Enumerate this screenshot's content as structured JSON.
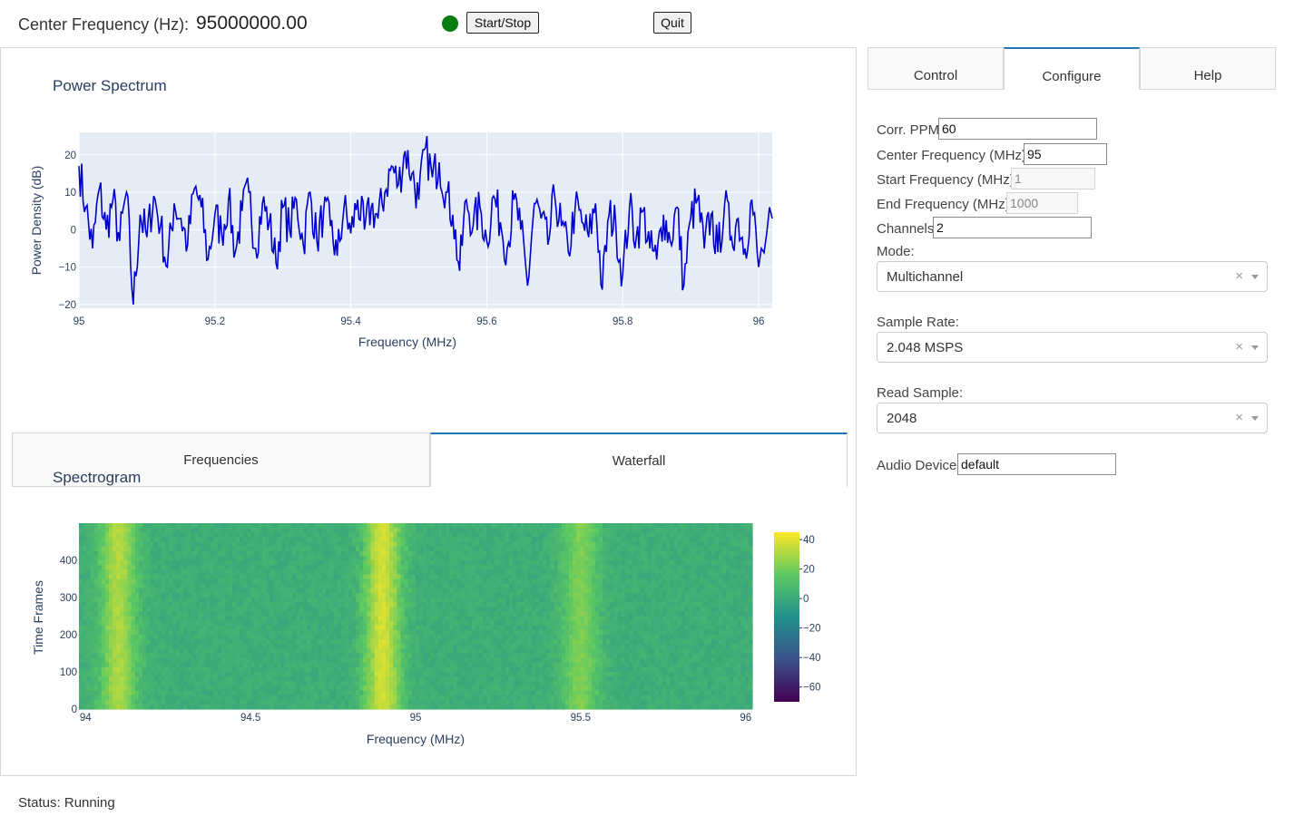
{
  "header": {
    "center_freq_label": "Center Frequency (Hz):",
    "center_freq_value": "95000000.00",
    "running_color": "#0a7d12",
    "start_stop_label": "Start/Stop",
    "quit_label": "Quit"
  },
  "right_tabs": [
    {
      "label": "Control",
      "active": false
    },
    {
      "label": "Configure",
      "active": true
    },
    {
      "label": "Help",
      "active": false
    }
  ],
  "config": {
    "corr_ppm_label": "Corr. PPM:",
    "corr_ppm_value": "60",
    "center_freq_label": "Center Frequency (MHz):",
    "center_freq_value": "95",
    "start_freq_label": "Start Frequency (MHz):",
    "start_freq_value": "1",
    "end_freq_label": "End Frequency (MHz):",
    "end_freq_value": "1000",
    "channels_label": "Channels:",
    "channels_value": "2",
    "mode_label": "Mode:",
    "mode_value": "Multichannel",
    "sample_rate_label": "Sample Rate:",
    "sample_rate_value": "2.048 MSPS",
    "read_sample_label": "Read Sample:",
    "read_sample_value": "2048",
    "audio_device_label": "Audio Device:",
    "audio_device_value": "default",
    "clear_symbol": "×"
  },
  "sub_tabs": [
    {
      "label": "Frequencies",
      "active": false
    },
    {
      "label": "Waterfall",
      "active": true
    }
  ],
  "status_text": "Status: Running",
  "chart_data": [
    {
      "type": "line",
      "title": "Power Spectrum",
      "xlabel": "Frequency (MHz)",
      "ylabel": "Power Density (dB)",
      "xlim": [
        95,
        96.02
      ],
      "ylim": [
        -21,
        26
      ],
      "xticks": [
        95,
        95.2,
        95.4,
        95.6,
        95.8,
        96
      ],
      "xtick_labels": [
        "95",
        "95.2",
        "95.4",
        "95.6",
        "95.8",
        "96"
      ],
      "yticks": [
        -20,
        -10,
        0,
        10,
        20
      ],
      "ytick_labels": [
        "−20",
        "−10",
        "0",
        "10",
        "20"
      ],
      "line_color": "#0000cc",
      "plot_bg": "#e5ecf6",
      "series": [
        {
          "x": [
            95.0,
            95.01,
            95.02,
            95.03,
            95.04,
            95.05,
            95.06,
            95.07,
            95.08,
            95.09,
            95.1,
            95.11,
            95.12,
            95.13,
            95.14,
            95.15,
            95.16,
            95.17,
            95.18,
            95.19,
            95.2,
            95.21,
            95.22,
            95.23,
            95.24,
            95.25,
            95.26,
            95.27,
            95.28,
            95.29,
            95.3,
            95.31,
            95.32,
            95.33,
            95.34,
            95.35,
            95.36,
            95.37,
            95.38,
            95.39,
            95.4,
            95.41,
            95.42,
            95.43,
            95.44,
            95.45,
            95.46,
            95.47,
            95.48,
            95.49,
            95.5,
            95.51,
            95.52,
            95.53,
            95.54,
            95.55,
            95.56,
            95.57,
            95.58,
            95.59,
            95.6,
            95.61,
            95.62,
            95.63,
            95.64,
            95.65,
            95.66,
            95.67,
            95.68,
            95.69,
            95.7,
            95.71,
            95.72,
            95.73,
            95.74,
            95.75,
            95.76,
            95.77,
            95.78,
            95.79,
            95.8,
            95.81,
            95.82,
            95.83,
            95.84,
            95.85,
            95.86,
            95.87,
            95.88,
            95.89,
            95.9,
            95.91,
            95.92,
            95.93,
            95.94,
            95.95,
            95.96,
            95.97,
            95.98,
            95.99,
            96.0,
            96.02
          ],
          "y": [
            17,
            6,
            -5,
            11,
            0,
            8,
            -3,
            10,
            -20,
            4,
            -2,
            9,
            1,
            -10,
            7,
            3,
            -4,
            11,
            6,
            -8,
            4,
            -1,
            8,
            -6,
            5,
            10,
            -5,
            7,
            2,
            -9,
            6,
            0,
            8,
            -4,
            10,
            -3,
            5,
            1,
            -7,
            6,
            -1,
            8,
            0,
            6,
            3,
            10,
            17,
            12,
            21,
            15,
            8,
            22,
            14,
            18,
            10,
            4,
            -11,
            8,
            1,
            6,
            -3,
            9,
            2,
            -5,
            8,
            0,
            -15,
            7,
            3,
            -4,
            9,
            1,
            -6,
            6,
            2,
            -2,
            7,
            -16,
            4,
            1,
            -12,
            6,
            -2,
            5,
            -5,
            -8,
            4,
            -3,
            6,
            -15,
            3,
            8,
            -5,
            4,
            -6,
            7,
            -2,
            3,
            -5,
            8,
            -10,
            3
          ]
        }
      ]
    },
    {
      "type": "heatmap",
      "title": "Spectrogram",
      "xlabel": "Frequency (MHz)",
      "ylabel": "Time Frames",
      "xlim": [
        93.98,
        96.02
      ],
      "ylim": [
        0,
        500
      ],
      "xticks": [
        94,
        94.5,
        95,
        95.5,
        96
      ],
      "xtick_labels": [
        "94",
        "94.5",
        "95",
        "95.5",
        "96"
      ],
      "yticks": [
        0,
        100,
        200,
        300,
        400
      ],
      "ytick_labels": [
        "0",
        "100",
        "200",
        "300",
        "400"
      ],
      "colorscale": "Viridis",
      "zlim": [
        -70,
        45
      ],
      "colorbar_ticks": [
        40,
        20,
        0,
        -20,
        -40,
        -60
      ],
      "colorbar_tick_labels": [
        "40",
        "20",
        "0",
        "−20",
        "−40",
        "−60"
      ],
      "bands": [
        {
          "center_mhz": 94.1,
          "peak_db": 28
        },
        {
          "center_mhz": 94.9,
          "peak_db": 35
        },
        {
          "center_mhz": 95.5,
          "peak_db": 20
        }
      ],
      "background_db": 2
    }
  ]
}
